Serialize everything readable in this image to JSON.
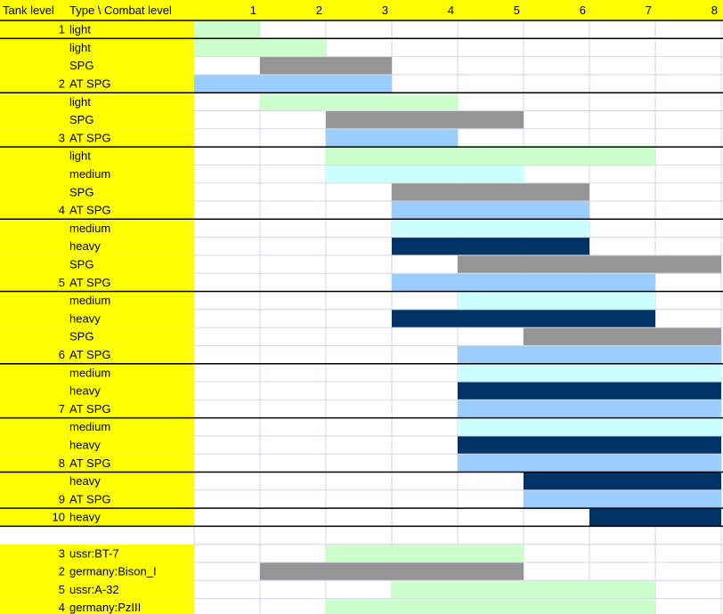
{
  "header": {
    "tank_level": "Tank level",
    "type_combat": "Type \\ Combat level",
    "levels": [
      1,
      2,
      3,
      4,
      5,
      6,
      7,
      8
    ]
  },
  "groups": [
    {
      "tier": 1,
      "rows": [
        {
          "type": "light",
          "min": 1,
          "max": 1,
          "color": "#ccffcc"
        }
      ]
    },
    {
      "tier": 2,
      "rows": [
        {
          "type": "light",
          "min": 1,
          "max": 2,
          "color": "#ccffcc"
        },
        {
          "type": "SPG",
          "min": 2,
          "max": 3,
          "color": "#969696"
        },
        {
          "type": "AT SPG",
          "min": 1,
          "max": 3,
          "color": "#99ccff"
        }
      ]
    },
    {
      "tier": 3,
      "rows": [
        {
          "type": "light",
          "min": 2,
          "max": 4,
          "color": "#ccffcc"
        },
        {
          "type": "SPG",
          "min": 3,
          "max": 5,
          "color": "#969696"
        },
        {
          "type": "AT SPG",
          "min": 3,
          "max": 4,
          "color": "#99ccff"
        }
      ]
    },
    {
      "tier": 4,
      "rows": [
        {
          "type": "light",
          "min": 3,
          "max": 7,
          "color": "#ccffcc"
        },
        {
          "type": "medium",
          "min": 3,
          "max": 5,
          "color": "#ccffff"
        },
        {
          "type": "SPG",
          "min": 4,
          "max": 6,
          "color": "#969696"
        },
        {
          "type": "AT SPG",
          "min": 4,
          "max": 6,
          "color": "#99ccff"
        }
      ]
    },
    {
      "tier": 5,
      "rows": [
        {
          "type": "medium",
          "min": 4,
          "max": 6,
          "color": "#ccffff"
        },
        {
          "type": "heavy",
          "min": 4,
          "max": 6,
          "color": "#003366"
        },
        {
          "type": "SPG",
          "min": 5,
          "max": 8,
          "color": "#969696"
        },
        {
          "type": "AT SPG",
          "min": 4,
          "max": 7,
          "color": "#99ccff"
        }
      ]
    },
    {
      "tier": 6,
      "rows": [
        {
          "type": "medium",
          "min": 5,
          "max": 7,
          "color": "#ccffff"
        },
        {
          "type": "heavy",
          "min": 4,
          "max": 7,
          "color": "#003366"
        },
        {
          "type": "SPG",
          "min": 6,
          "max": 8,
          "color": "#969696"
        },
        {
          "type": "AT SPG",
          "min": 5,
          "max": 8,
          "color": "#99ccff"
        }
      ]
    },
    {
      "tier": 7,
      "rows": [
        {
          "type": "medium",
          "min": 5,
          "max": 8,
          "color": "#ccffff"
        },
        {
          "type": "heavy",
          "min": 5,
          "max": 8,
          "color": "#003366"
        },
        {
          "type": "AT SPG",
          "min": 5,
          "max": 8,
          "color": "#99ccff"
        }
      ]
    },
    {
      "tier": 8,
      "rows": [
        {
          "type": "medium",
          "min": 5,
          "max": 8,
          "color": "#ccffff"
        },
        {
          "type": "heavy",
          "min": 5,
          "max": 8,
          "color": "#003366"
        },
        {
          "type": "AT SPG",
          "min": 5,
          "max": 8,
          "color": "#99ccff"
        }
      ]
    },
    {
      "tier": 9,
      "rows": [
        {
          "type": "heavy",
          "min": 6,
          "max": 8,
          "color": "#003366"
        },
        {
          "type": "AT SPG",
          "min": 6,
          "max": 8,
          "color": "#99ccff"
        }
      ]
    },
    {
      "tier": 10,
      "rows": [
        {
          "type": "heavy",
          "min": 7,
          "max": 8,
          "color": "#003366"
        }
      ]
    }
  ],
  "tanks": [
    {
      "tier": 3,
      "name": "ussr:BT-7",
      "min": 3,
      "max": 5,
      "color": "#ccffcc"
    },
    {
      "tier": 2,
      "name": "germany:Bison_I",
      "min": 2,
      "max": 5,
      "color": "#969696"
    },
    {
      "tier": 5,
      "name": "ussr:A-32",
      "min": 4,
      "max": 7,
      "color": "#ccffcc"
    },
    {
      "tier": 4,
      "name": "germany:PzIII",
      "min": 3,
      "max": 7,
      "color": "#ccffcc"
    }
  ]
}
